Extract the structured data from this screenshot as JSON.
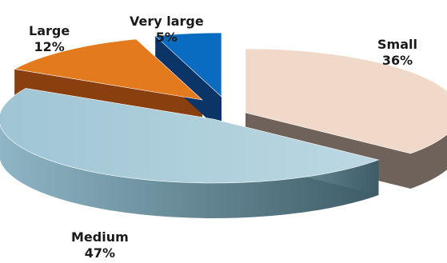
{
  "chart_data": {
    "type": "pie",
    "style": "3d-exploded",
    "title": "",
    "slices": [
      {
        "label": "Small",
        "value": 36,
        "value_label": "36%",
        "color": "#f0d9c8",
        "side_color": "#6f625a"
      },
      {
        "label": "Medium",
        "value": 47,
        "value_label": "47%",
        "color": "#a7cbd8",
        "side_color": "#5b7f8c"
      },
      {
        "label": "Large",
        "value": 12,
        "value_label": "12%",
        "color": "#e37a1e",
        "side_color": "#8a3f0e"
      },
      {
        "label": "Very large",
        "value": 5,
        "value_label": "5%",
        "color": "#0a6cc0",
        "side_color": "#0a3566"
      }
    ]
  }
}
